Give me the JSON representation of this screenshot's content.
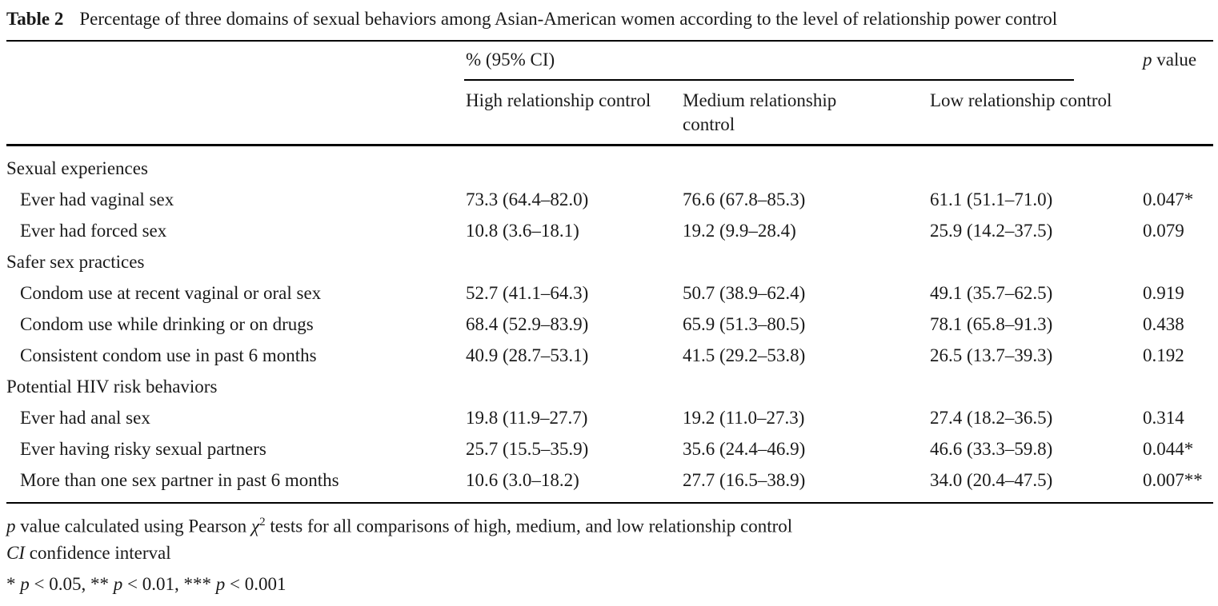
{
  "caption": {
    "number": "Table 2",
    "title": "Percentage of three domains of sexual behaviors among Asian-American women according to the level of relationship power control"
  },
  "header": {
    "ci_label": "% (95% CI)",
    "p_label": "p",
    "p_suffix": " value",
    "columns": [
      "High relationship control",
      "Medium relationship control",
      "Low relationship control"
    ]
  },
  "sections": [
    {
      "title": "Sexual experiences",
      "rows": [
        {
          "label": "Ever had vaginal sex",
          "high": "73.3 (64.4–82.0)",
          "medium": "76.6 (67.8–85.3)",
          "low": "61.1 (51.1–71.0)",
          "p": "0.047*"
        },
        {
          "label": "Ever had forced sex",
          "high": "10.8 (3.6–18.1)",
          "medium": "19.2 (9.9–28.4)",
          "low": "25.9 (14.2–37.5)",
          "p": "0.079"
        }
      ]
    },
    {
      "title": "Safer sex practices",
      "rows": [
        {
          "label": "Condom use at recent vaginal or oral sex",
          "high": "52.7 (41.1–64.3)",
          "medium": "50.7 (38.9–62.4)",
          "low": "49.1 (35.7–62.5)",
          "p": "0.919"
        },
        {
          "label": "Condom use while drinking or on drugs",
          "high": "68.4 (52.9–83.9)",
          "medium": "65.9 (51.3–80.5)",
          "low": "78.1 (65.8–91.3)",
          "p": "0.438"
        },
        {
          "label": "Consistent condom use in past 6 months",
          "high": "40.9 (28.7–53.1)",
          "medium": "41.5 (29.2–53.8)",
          "low": "26.5 (13.7–39.3)",
          "p": "0.192"
        }
      ]
    },
    {
      "title": "Potential HIV risk behaviors",
      "rows": [
        {
          "label": "Ever had anal sex",
          "high": "19.8 (11.9–27.7)",
          "medium": "19.2 (11.0–27.3)",
          "low": "27.4 (18.2–36.5)",
          "p": "0.314"
        },
        {
          "label": "Ever having risky sexual partners",
          "high": "25.7 (15.5–35.9)",
          "medium": "35.6 (24.4–46.9)",
          "low": "46.6 (33.3–59.8)",
          "p": "0.044*"
        },
        {
          "label": "More than one sex partner in past 6 months",
          "high": "10.6 (3.0–18.2)",
          "medium": "27.7 (16.5–38.9)",
          "low": "34.0 (20.4–47.5)",
          "p": "0.007**"
        }
      ]
    }
  ],
  "footnotes": {
    "note1": {
      "p": "p",
      "text_a": " value calculated using Pearson ",
      "chi": "χ",
      "sup": "2",
      "text_b": " tests for all comparisons of high, medium, and low relationship control"
    },
    "note2": {
      "abbr": "CI",
      "text": " confidence interval"
    },
    "note3": [
      {
        "stars": "* ",
        "p": "p",
        "rest": " < 0.05, "
      },
      {
        "stars": "** ",
        "p": "p",
        "rest": " < 0.01, "
      },
      {
        "stars": "*** ",
        "p": "p",
        "rest": " < 0.001"
      }
    ]
  }
}
